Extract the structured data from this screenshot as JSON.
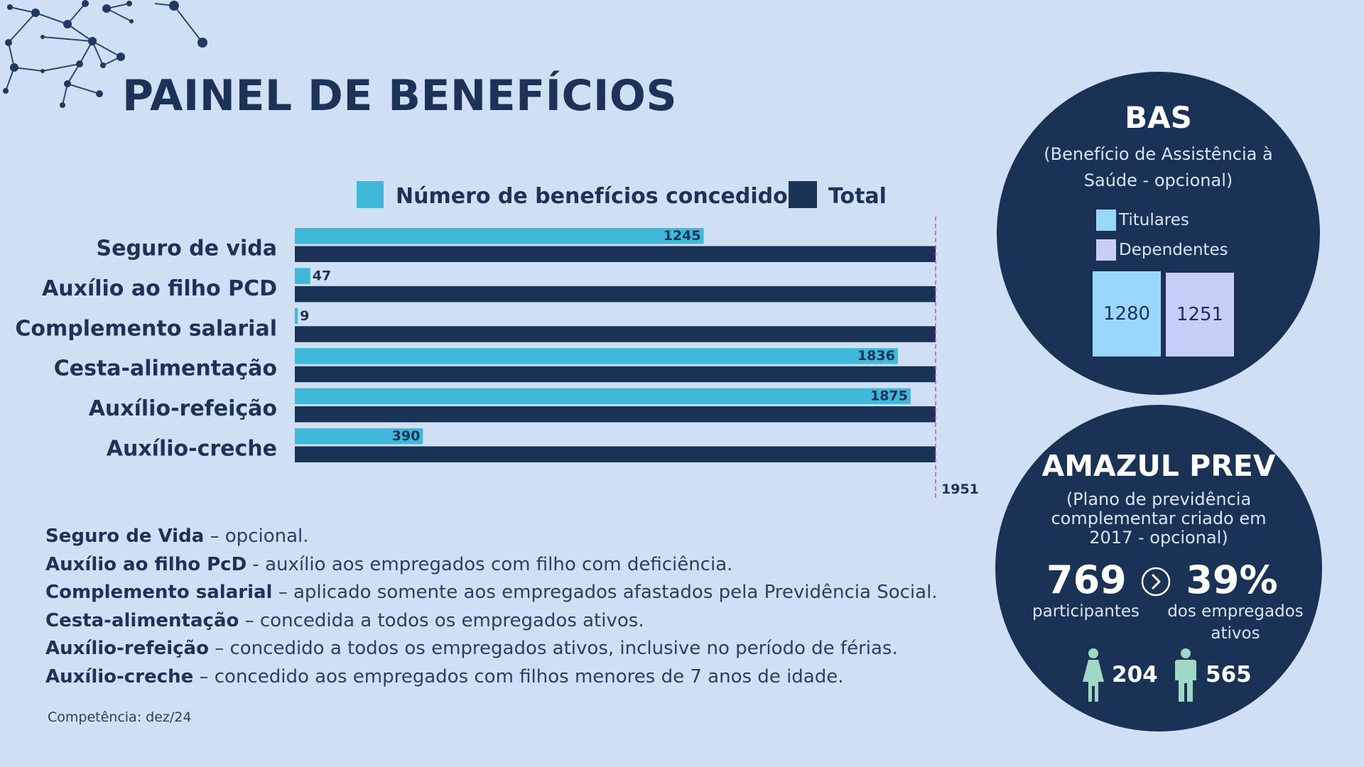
{
  "title": "PAINEL DE BENEFÍCIOS",
  "colors": {
    "background": "#cfe0f4",
    "navy": "#1b3257",
    "cyan": "#3fb8d9",
    "titulares": "#9ad8fb",
    "dependentes": "#c7cef8",
    "reference_line": "#d04fb0"
  },
  "chart_data": {
    "type": "bar",
    "orientation": "horizontal",
    "categories": [
      "Seguro de vida",
      "Auxílio ao filho PCD",
      "Complemento salarial",
      "Cesta-alimentação",
      "Auxílio-refeição",
      "Auxílio-creche"
    ],
    "series": [
      {
        "name": "Número de benefícios concedidos",
        "values": [
          1245,
          47,
          9,
          1836,
          1875,
          390
        ],
        "labels": [
          "1245",
          "47",
          "9",
          "1836",
          "1875",
          "390"
        ]
      },
      {
        "name": "Total",
        "values": [
          1951,
          1951,
          1951,
          1951,
          1951,
          1951
        ]
      }
    ],
    "reference_line": {
      "value": 1951,
      "label": "1951"
    },
    "xlim": [
      0,
      1951
    ],
    "legend_position": "top"
  },
  "notes": [
    {
      "term": "Seguro de Vida",
      "desc": " – opcional."
    },
    {
      "term": "Auxílio ao filho PcD",
      "desc": " - auxílio aos empregados com filho com deficiência."
    },
    {
      "term": "Complemento salarial",
      "desc": " – aplicado somente aos empregados afastados pela Previdência Social."
    },
    {
      "term": "Cesta-alimentação",
      "desc": " – concedida a todos os empregados ativos."
    },
    {
      "term": "Auxílio-refeição",
      "desc": " – concedido a todos os empregados ativos, inclusive no período de férias."
    },
    {
      "term": "Auxílio-creche",
      "desc": " – concedido aos empregados com filhos menores de 7 anos de idade."
    }
  ],
  "competencia": "Competência: dez/24",
  "bas": {
    "title": "BAS",
    "subtitle": "(Benefício de Assistência à Saúde - opcional)",
    "legend_titulares": "Titulares",
    "legend_dependentes": "Dependentes",
    "titulares": "1280",
    "dependentes": "1251"
  },
  "prev": {
    "title": "AMAZUL PREV",
    "subtitle": "(Plano de previdência complementar criado em 2017 - opcional)",
    "participantes_num": "769",
    "participantes_label": "participantes",
    "percent_num": "39%",
    "percent_label": "dos empregados ativos",
    "female": "204",
    "male": "565"
  }
}
